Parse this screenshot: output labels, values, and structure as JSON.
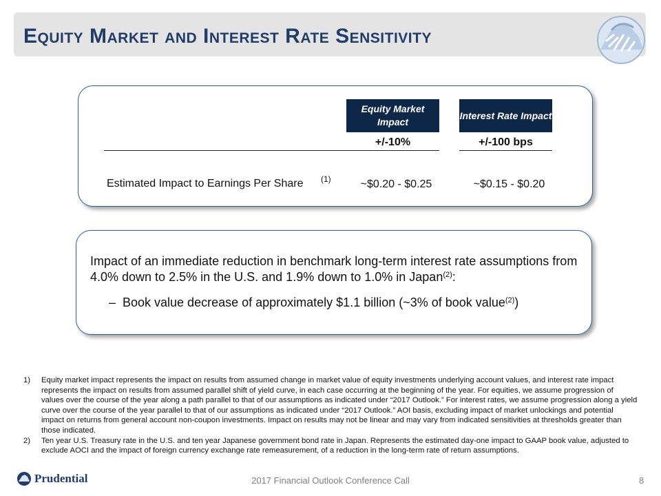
{
  "header": {
    "title": "Equity Market and Interest Rate Sensitivity"
  },
  "sensitivity_table": {
    "columns": [
      {
        "heading": "Equity Market Impact",
        "scenario": "+/-10%"
      },
      {
        "heading": "Interest Rate Impact",
        "scenario": "+/-100 bps"
      }
    ],
    "row": {
      "label": "Estimated Impact to Earnings Per Share",
      "note": "(1)",
      "values": [
        "~$0.20 - $0.25",
        "~$0.15 - $0.20"
      ]
    }
  },
  "impact_box": {
    "text_line1": "Impact of an immediate reduction in benchmark long-term interest rate assumptions from 4.0% down to 2.5% in the U.S. and 1.9% down to 1.0% in Japan",
    "text_note": "(2)",
    "text_end": ":",
    "bullet_dash": "–",
    "bullet_text": "Book value decrease of approximately $1.1 billion (~3% of book value",
    "bullet_note": "(2)",
    "bullet_end": ")"
  },
  "footnotes": [
    {
      "number": "1)",
      "text": "Equity market impact represents the impact on results from assumed change in market value of equity investments underlying account values, and interest rate impact represents the impact on results from assumed parallel shift of yield curve, in each case occurring at the beginning of the year.  For equities, we assume progression of values over the course of the year along a path parallel to that of our assumptions as indicated under “2017 Outlook.”  For interest rates, we assume progression along a yield curve over the course of the year parallel to that of our assumptions as indicated under “2017 Outlook.”  AOI basis, excluding impact of market unlockings and potential impact on returns from general account non-coupon investments.  Impact on results may not be linear and may vary from indicated sensitivities at thresholds greater than those indicated."
    },
    {
      "number": "2)",
      "text": "Ten year U.S. Treasury rate in the U.S. and ten year Japanese government bond rate in Japan.  Represents the estimated day-one impact to GAAP book value, adjusted to exclude AOCI and the impact of foreign currency exchange rate remeasurement, of a reduction in the long-term rate of return assumptions."
    }
  ],
  "footer": {
    "brand": "Prudential",
    "brand_icon": "rock-of-gibraltar-logo",
    "center_text": "2017 Financial Outlook Conference Call",
    "page_number": "8"
  },
  "colors": {
    "title": "#1f3c6b",
    "table_header_bg": "#0d2748",
    "panel_border": "#2b5ea0",
    "title_bar_bg": "#e4e4e4"
  }
}
